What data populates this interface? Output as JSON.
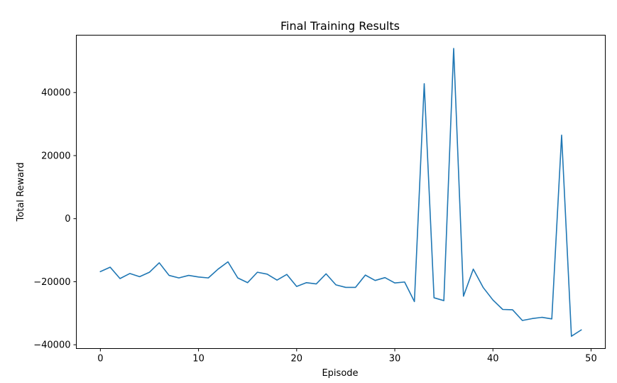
{
  "chart_data": {
    "type": "line",
    "title": "Final Training Results",
    "xlabel": "Episode",
    "ylabel": "Total Reward",
    "xlim": [
      -2.45,
      51.45
    ],
    "ylim": [
      -41200,
      58200
    ],
    "xticks": [
      0,
      10,
      20,
      30,
      40,
      50
    ],
    "yticks": [
      -40000,
      -20000,
      0,
      20000,
      40000
    ],
    "ytick_labels": [
      "−40000",
      "−20000",
      "0",
      "20000",
      "40000"
    ],
    "grid": false,
    "legend": false,
    "series": [
      {
        "color": "#1f77b4",
        "x": [
          0,
          1,
          2,
          3,
          4,
          5,
          6,
          7,
          8,
          9,
          10,
          11,
          12,
          13,
          14,
          15,
          16,
          17,
          18,
          19,
          20,
          21,
          22,
          23,
          24,
          25,
          26,
          27,
          28,
          29,
          30,
          31,
          32,
          33,
          34,
          35,
          36,
          37,
          38,
          39,
          40,
          41,
          42,
          43,
          44,
          45,
          46,
          47,
          48,
          49
        ],
        "y": [
          -16800,
          -15400,
          -19000,
          -17400,
          -18400,
          -17000,
          -14000,
          -18000,
          -18800,
          -18000,
          -18500,
          -18800,
          -16000,
          -13700,
          -18800,
          -20300,
          -17000,
          -17600,
          -19500,
          -17700,
          -21500,
          -20300,
          -20700,
          -17500,
          -21000,
          -21800,
          -21800,
          -17900,
          -19600,
          -18700,
          -20400,
          -20100,
          -26300,
          42800,
          -25100,
          -26000,
          54000,
          -24600,
          -16000,
          -21800,
          -25800,
          -28800,
          -28900,
          -32300,
          -31700,
          -31300,
          -31800,
          26500,
          -37300,
          -35300
        ]
      }
    ]
  }
}
